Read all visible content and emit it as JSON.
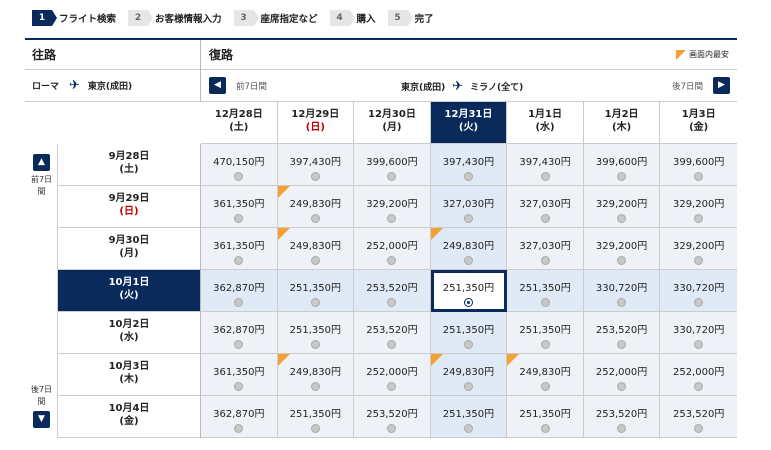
{
  "steps": [
    {
      "num": "1",
      "label": "フライト検索",
      "active": true
    },
    {
      "num": "2",
      "label": "お客様情報入力",
      "active": false
    },
    {
      "num": "3",
      "label": "座席指定など",
      "active": false
    },
    {
      "num": "4",
      "label": "購入",
      "active": false
    },
    {
      "num": "5",
      "label": "完了",
      "active": false
    }
  ],
  "outbound": {
    "title": "往路",
    "from": "ローマ",
    "to": "東京(成田)"
  },
  "return": {
    "title": "復路",
    "legend": "画面内最安",
    "prev_label": "前7日間",
    "next_label": "後7日間",
    "from": "東京(成田)",
    "to": "ミラノ(全て)"
  },
  "side": {
    "prev_label": "前7日間",
    "next_label": "後7日間"
  },
  "return_dates": [
    {
      "date": "12月28日",
      "dow": "(土)",
      "red": false
    },
    {
      "date": "12月29日",
      "dow": "(日)",
      "red": true
    },
    {
      "date": "12月30日",
      "dow": "(月)",
      "red": false
    },
    {
      "date": "12月31日",
      "dow": "(火)",
      "red": false,
      "selected": true
    },
    {
      "date": "1月1日",
      "dow": "(水)",
      "red": false
    },
    {
      "date": "1月2日",
      "dow": "(木)",
      "red": false
    },
    {
      "date": "1月3日",
      "dow": "(金)",
      "red": false
    }
  ],
  "outbound_dates": [
    {
      "date": "9月28日",
      "dow": "(土)",
      "red": false
    },
    {
      "date": "9月29日",
      "dow": "(日)",
      "red": true
    },
    {
      "date": "9月30日",
      "dow": "(月)",
      "red": false
    },
    {
      "date": "10月1日",
      "dow": "(火)",
      "red": false,
      "selected": true
    },
    {
      "date": "10月2日",
      "dow": "(水)",
      "red": false
    },
    {
      "date": "10月3日",
      "dow": "(木)",
      "red": false
    },
    {
      "date": "10月4日",
      "dow": "(金)",
      "red": false
    }
  ],
  "fares": [
    [
      "470,150円",
      "397,430円",
      "399,600円",
      "397,430円",
      "397,430円",
      "399,600円",
      "399,600円"
    ],
    [
      "361,350円",
      "249,830円",
      "329,200円",
      "327,030円",
      "327,030円",
      "329,200円",
      "329,200円"
    ],
    [
      "361,350円",
      "249,830円",
      "252,000円",
      "249,830円",
      "327,030円",
      "329,200円",
      "329,200円"
    ],
    [
      "362,870円",
      "251,350円",
      "253,520円",
      "251,350円",
      "251,350円",
      "330,720円",
      "330,720円"
    ],
    [
      "362,870円",
      "251,350円",
      "253,520円",
      "251,350円",
      "251,350円",
      "253,520円",
      "330,720円"
    ],
    [
      "361,350円",
      "249,830円",
      "252,000円",
      "249,830円",
      "249,830円",
      "252,000円",
      "252,000円"
    ],
    [
      "362,870円",
      "251,350円",
      "253,520円",
      "251,350円",
      "251,350円",
      "253,520円",
      "253,520円"
    ]
  ],
  "cheapest_cells": [
    [
      1,
      1
    ],
    [
      2,
      1
    ],
    [
      2,
      3
    ],
    [
      5,
      1
    ],
    [
      5,
      3
    ],
    [
      5,
      4
    ]
  ],
  "selected_cell": [
    3,
    3
  ],
  "colors": {
    "primary": "#0a2a5c",
    "cheapest": "#f5a032",
    "holiday": "#c00000"
  }
}
